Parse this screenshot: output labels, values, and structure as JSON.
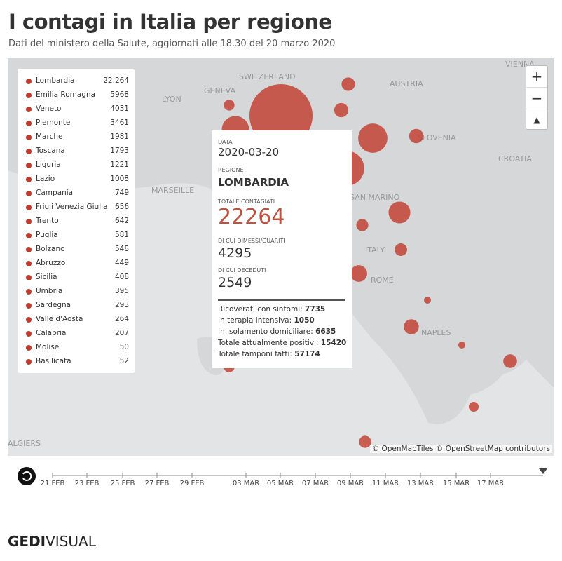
{
  "header": {
    "title": "I contagi in Italia per regione",
    "subtitle": "Dati del ministero della Salute, aggiornati alle 18.30 del 20 marzo 2020"
  },
  "legend": [
    {
      "name": "Lombardia",
      "value": "22,264"
    },
    {
      "name": "Emilia Romagna",
      "value": "5968"
    },
    {
      "name": "Veneto",
      "value": "4031"
    },
    {
      "name": "Piemonte",
      "value": "3461"
    },
    {
      "name": "Marche",
      "value": "1981"
    },
    {
      "name": "Toscana",
      "value": "1793"
    },
    {
      "name": "Liguria",
      "value": "1221"
    },
    {
      "name": "Lazio",
      "value": "1008"
    },
    {
      "name": "Campania",
      "value": "749"
    },
    {
      "name": "Friuli Venezia Giulia",
      "value": "656"
    },
    {
      "name": "Trento",
      "value": "642"
    },
    {
      "name": "Puglia",
      "value": "581"
    },
    {
      "name": "Bolzano",
      "value": "548"
    },
    {
      "name": "Abruzzo",
      "value": "449"
    },
    {
      "name": "Sicilia",
      "value": "408"
    },
    {
      "name": "Umbria",
      "value": "395"
    },
    {
      "name": "Sardegna",
      "value": "293"
    },
    {
      "name": "Valle d'Aosta",
      "value": "264"
    },
    {
      "name": "Calabria",
      "value": "207"
    },
    {
      "name": "Molise",
      "value": "50"
    },
    {
      "name": "Basilicata",
      "value": "52"
    }
  ],
  "map_labels": [
    "SWITZERLAND",
    "GENEVA",
    "AUSTRIA",
    "LYON",
    "SLOVENIA",
    "CROATIA",
    "MARSEILLE",
    "SAN MARINO",
    "ITALY",
    "ROME",
    "NAPLES",
    "ALGIERS",
    "VIENNA"
  ],
  "tooltip": {
    "date_label": "DATA",
    "date": "2020-03-20",
    "region_label": "REGIONE",
    "region": "LOMBARDIA",
    "total_label": "TOTALE CONTAGIATI",
    "total": "22264",
    "recovered_label": "DI CUI DIMESSI/GUARITI",
    "recovered": "4295",
    "deaths_label": "DI CUI DECEDUTI",
    "deaths": "2549",
    "details": [
      {
        "label": "Ricoverati con sintomi:",
        "value": "7735"
      },
      {
        "label": "In terapia intensiva:",
        "value": "1050"
      },
      {
        "label": "In isolamento domiciliare:",
        "value": "6635"
      },
      {
        "label": "Totale attualmente positivi:",
        "value": "15420"
      },
      {
        "label": "Totale tamponi fatti:",
        "value": "57174"
      }
    ]
  },
  "attribution": "© OpenMapTiles © OpenStreetMap contributors",
  "timeline": [
    "21 FEB",
    "23 FEB",
    "25 FEB",
    "27 FEB",
    "29 FEB",
    "03 MAR",
    "05 MAR",
    "07 MAR",
    "09 MAR",
    "11 MAR",
    "13 MAR",
    "15 MAR",
    "17 MAR"
  ],
  "footer": {
    "logo_a": "GEDI",
    "logo_b": "VISUAL"
  }
}
